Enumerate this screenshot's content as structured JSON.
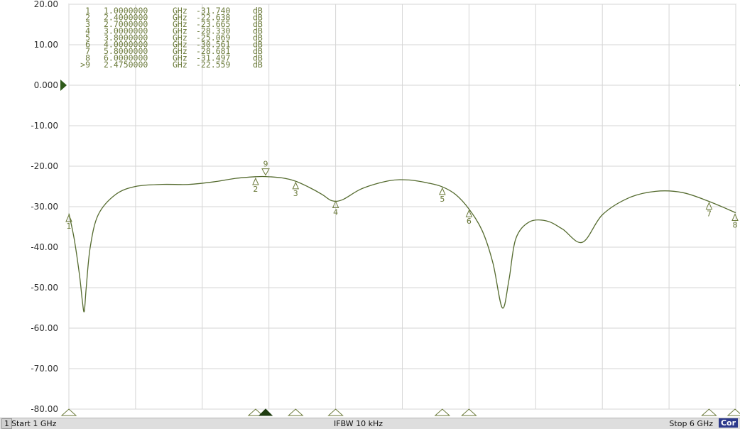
{
  "chart_data": {
    "type": "line",
    "x_range_ghz": [
      1,
      6
    ],
    "ylim": [
      -80,
      20
    ],
    "y_ticks": [
      20,
      10,
      0,
      -10,
      -20,
      -30,
      -40,
      -50,
      -60,
      -70,
      -80
    ],
    "y_tick_labels": [
      "20.00",
      "10.00",
      "0.000",
      "-10.00",
      "-20.00",
      "-30.00",
      "-40.00",
      "-50.00",
      "-60.00",
      "-70.00",
      "-80.00"
    ],
    "reference_level": 0,
    "grid": true,
    "x_divisions": 10,
    "trace_color": "#556b2f",
    "series": [
      {
        "x": [
          1.0,
          1.04,
          1.08,
          1.1,
          1.115,
          1.13,
          1.16,
          1.22,
          1.35,
          1.5,
          1.7,
          1.9,
          2.1,
          2.25,
          2.4,
          2.475,
          2.6,
          2.7,
          2.8,
          2.9,
          2.97,
          3.05,
          3.2,
          3.4,
          3.55,
          3.7,
          3.8,
          3.9,
          4.0,
          4.1,
          4.18,
          4.25,
          4.3,
          4.35,
          4.45,
          4.58,
          4.7,
          4.85,
          5.0,
          5.2,
          5.4,
          5.6,
          5.8,
          6.0
        ],
        "y": [
          -31.7,
          -38.0,
          -47.0,
          -53.0,
          -55.9,
          -50.0,
          -40.0,
          -32.0,
          -27.0,
          -25.0,
          -24.5,
          -24.5,
          -23.8,
          -23.0,
          -22.6,
          -22.56,
          -22.9,
          -23.7,
          -25.2,
          -27.0,
          -28.5,
          -28.3,
          -25.5,
          -23.6,
          -23.4,
          -24.2,
          -25.1,
          -27.0,
          -30.6,
          -36.0,
          -44.0,
          -55.0,
          -48.0,
          -38.0,
          -33.8,
          -33.5,
          -35.5,
          -38.8,
          -32.0,
          -27.8,
          -26.2,
          -26.5,
          -28.7,
          -31.5
        ]
      }
    ],
    "markers": [
      {
        "num": "1",
        "freq": "1.0000000",
        "unit": "GHz",
        "value": "-31.740",
        "value_unit": "dB",
        "x": 1.0,
        "y": -31.74
      },
      {
        "num": "2",
        "freq": "2.4000000",
        "unit": "GHz",
        "value": "-22.638",
        "value_unit": "dB",
        "x": 2.4,
        "y": -22.638
      },
      {
        "num": "3",
        "freq": "2.7000000",
        "unit": "GHz",
        "value": "-23.665",
        "value_unit": "dB",
        "x": 2.7,
        "y": -23.665
      },
      {
        "num": "4",
        "freq": "3.0000000",
        "unit": "GHz",
        "value": "-28.330",
        "value_unit": "dB",
        "x": 3.0,
        "y": -28.33
      },
      {
        "num": "5",
        "freq": "3.8000000",
        "unit": "GHz",
        "value": "-25.069",
        "value_unit": "dB",
        "x": 3.8,
        "y": -25.069
      },
      {
        "num": "6",
        "freq": "4.0000000",
        "unit": "GHz",
        "value": "-30.561",
        "value_unit": "dB",
        "x": 4.0,
        "y": -30.561
      },
      {
        "num": "7",
        "freq": "5.8000000",
        "unit": "GHz",
        "value": "-28.681",
        "value_unit": "dB",
        "x": 5.8,
        "y": -28.681
      },
      {
        "num": "8",
        "freq": "6.0000000",
        "unit": "GHz",
        "value": "-31.497",
        "value_unit": "dB",
        "x": 6.0,
        "y": -31.497
      },
      {
        "num": "9",
        "prefix": ">",
        "freq": "2.4750000",
        "unit": "GHz",
        "value": "-22.559",
        "value_unit": "dB",
        "x": 2.475,
        "y": -22.559,
        "active": true
      }
    ]
  },
  "status": {
    "channel": "1",
    "start": "Start 1 GHz",
    "ifbw": "IFBW 10 kHz",
    "stop": "Stop 6 GHz",
    "correction": "Cor"
  }
}
